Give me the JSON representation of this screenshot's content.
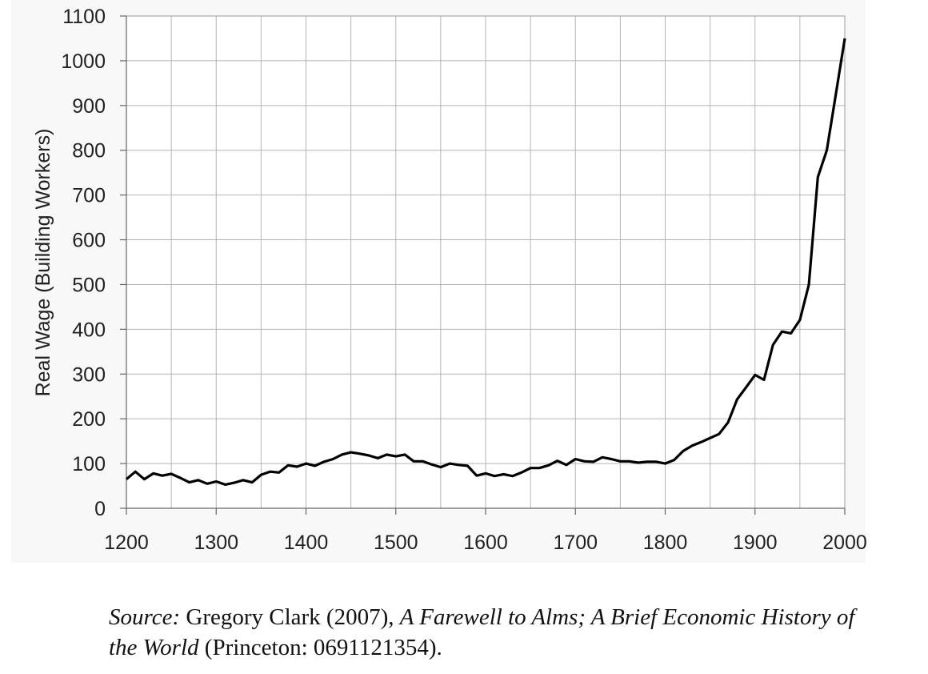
{
  "chart_data": {
    "type": "line",
    "title": "",
    "xlabel": "",
    "ylabel": "Real Wage (Building Workers)",
    "xlim": [
      1200,
      2000
    ],
    "ylim": [
      0,
      1100
    ],
    "x_ticks": [
      "1200",
      "1300",
      "1400",
      "1500",
      "1600",
      "1700",
      "1800",
      "1900",
      "2000"
    ],
    "y_ticks": [
      "0",
      "100",
      "200",
      "300",
      "400",
      "500",
      "600",
      "700",
      "800",
      "900",
      "1000",
      "1100"
    ],
    "grid": true,
    "legend": "none",
    "line_color": "#000000",
    "series": [
      {
        "x": [
          1200,
          1210,
          1220,
          1230,
          1240,
          1250,
          1260,
          1270,
          1280,
          1290,
          1300,
          1310,
          1320,
          1330,
          1340,
          1350,
          1360,
          1370,
          1380,
          1390,
          1400,
          1410,
          1420,
          1430,
          1440,
          1450,
          1460,
          1470,
          1480,
          1490,
          1500,
          1510,
          1520,
          1530,
          1540,
          1550,
          1560,
          1570,
          1580,
          1590,
          1600,
          1610,
          1620,
          1630,
          1640,
          1650,
          1660,
          1670,
          1680,
          1690,
          1700,
          1710,
          1720,
          1730,
          1740,
          1750,
          1760,
          1770,
          1780,
          1790,
          1800,
          1810,
          1820,
          1830,
          1840,
          1850,
          1860,
          1870,
          1880,
          1890,
          1900,
          1910,
          1920,
          1930,
          1940,
          1950,
          1960,
          1970,
          1980,
          1990,
          2000
        ],
        "values": [
          65,
          82,
          65,
          78,
          73,
          77,
          68,
          58,
          63,
          55,
          60,
          53,
          57,
          63,
          58,
          75,
          82,
          80,
          96,
          93,
          100,
          95,
          104,
          110,
          120,
          125,
          122,
          118,
          112,
          120,
          116,
          120,
          105,
          105,
          98,
          92,
          100,
          97,
          95,
          73,
          78,
          72,
          76,
          72,
          80,
          90,
          90,
          96,
          106,
          97,
          110,
          105,
          104,
          114,
          110,
          105,
          105,
          102,
          104,
          104,
          100,
          108,
          128,
          140,
          148,
          157,
          166,
          192,
          243,
          270,
          298,
          287,
          365,
          395,
          391,
          421,
          500,
          740,
          800,
          925,
          1050
        ]
      }
    ]
  },
  "source": {
    "label": "Source:",
    "author": " Gregory Clark (2007), ",
    "book_title": "A Farewell to Alms; A Brief Economic History of the World",
    "publisher": " (Princeton: 0691121354)."
  }
}
